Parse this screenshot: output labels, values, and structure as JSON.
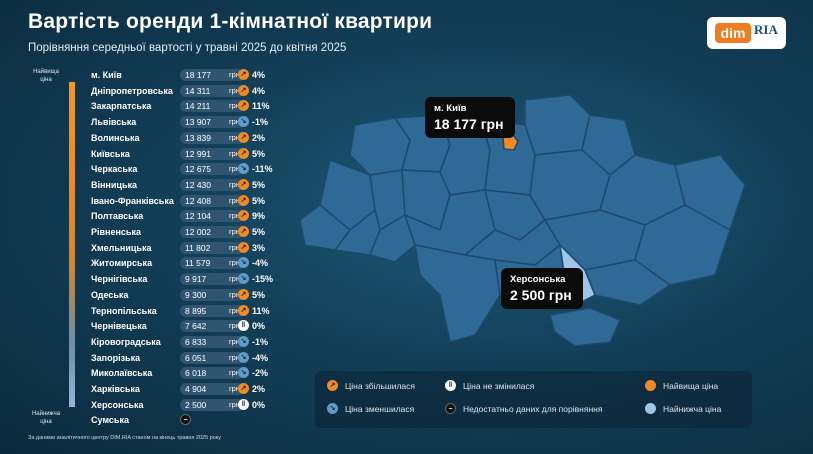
{
  "title": "Вартість оренди 1-кімнатної квартири",
  "subtitle": "Порівняння середньої вартості у травні 2025 до квітня 2025",
  "logo": {
    "left": "dim",
    "right": "RIA"
  },
  "scale": {
    "top_label": "Найвища ціна",
    "bottom_label": "Найнижча ціна"
  },
  "currency": "грн",
  "regions": [
    {
      "name": "м. Київ",
      "price": "18 177",
      "trend": "up",
      "change": "4%"
    },
    {
      "name": "Дніпропетровська",
      "price": "14 311",
      "trend": "up",
      "change": "4%"
    },
    {
      "name": "Закарпатська",
      "price": "14 211",
      "trend": "up",
      "change": "11%"
    },
    {
      "name": "Львівська",
      "price": "13 907",
      "trend": "down",
      "change": "-1%"
    },
    {
      "name": "Волинська",
      "price": "13 839",
      "trend": "up",
      "change": "2%"
    },
    {
      "name": "Київська",
      "price": "12 991",
      "trend": "up",
      "change": "5%"
    },
    {
      "name": "Черкаська",
      "price": "12 675",
      "trend": "down",
      "change": "-11%"
    },
    {
      "name": "Вінницька",
      "price": "12 430",
      "trend": "up",
      "change": "5%"
    },
    {
      "name": "Івано-Франківська",
      "price": "12 408",
      "trend": "up",
      "change": "5%"
    },
    {
      "name": "Полтавська",
      "price": "12 104",
      "trend": "up",
      "change": "9%"
    },
    {
      "name": "Рівненська",
      "price": "12 002",
      "trend": "up",
      "change": "5%"
    },
    {
      "name": "Хмельницька",
      "price": "11 802",
      "trend": "up",
      "change": "3%"
    },
    {
      "name": "Житомирська",
      "price": "11 579",
      "trend": "down",
      "change": "-4%"
    },
    {
      "name": "Чернігівська",
      "price": "9 917",
      "trend": "down",
      "change": "-15%"
    },
    {
      "name": "Одеська",
      "price": "9 300",
      "trend": "up",
      "change": "5%"
    },
    {
      "name": "Тернопільська",
      "price": "8 895",
      "trend": "up",
      "change": "11%"
    },
    {
      "name": "Чернівецька",
      "price": "7 642",
      "trend": "same",
      "change": "0%"
    },
    {
      "name": "Кіровоградська",
      "price": "6 833",
      "trend": "down",
      "change": "-1%"
    },
    {
      "name": "Запорізька",
      "price": "6 051",
      "trend": "down",
      "change": "-4%"
    },
    {
      "name": "Миколаївська",
      "price": "6 018",
      "trend": "down",
      "change": "-2%"
    },
    {
      "name": "Харківська",
      "price": "4 904",
      "trend": "up",
      "change": "2%"
    },
    {
      "name": "Херсонська",
      "price": "2 500",
      "trend": "same",
      "change": "0%"
    },
    {
      "name": "Сумська",
      "price": "",
      "trend": "na",
      "change": ""
    }
  ],
  "callouts": {
    "highest": {
      "title": "м. Київ",
      "value": "18 177 грн"
    },
    "lowest": {
      "title": "Херсонська",
      "value": "2 500 грн"
    }
  },
  "legend": {
    "increased": "Ціна збільшилася",
    "decreased": "Ціна зменшилася",
    "unchanged": "Ціна не змінилася",
    "no_data": "Недостатньо даних для порівняння",
    "highest": "Найвища ціна",
    "lowest": "Найнижча ціна"
  },
  "footnote": "За даними аналітичного центру DIM.RIA станом на кінець травня 2025 року",
  "colors": {
    "accent_orange": "#f08a22",
    "down_blue": "#5d9cc6",
    "map_region": "#2f6a96",
    "map_lowest": "#9fc6e6",
    "background": "#123f58"
  },
  "icons": {
    "up": "arrow-up-icon",
    "down": "arrow-down-icon",
    "same": "pause-icon",
    "na": "minus-icon"
  }
}
